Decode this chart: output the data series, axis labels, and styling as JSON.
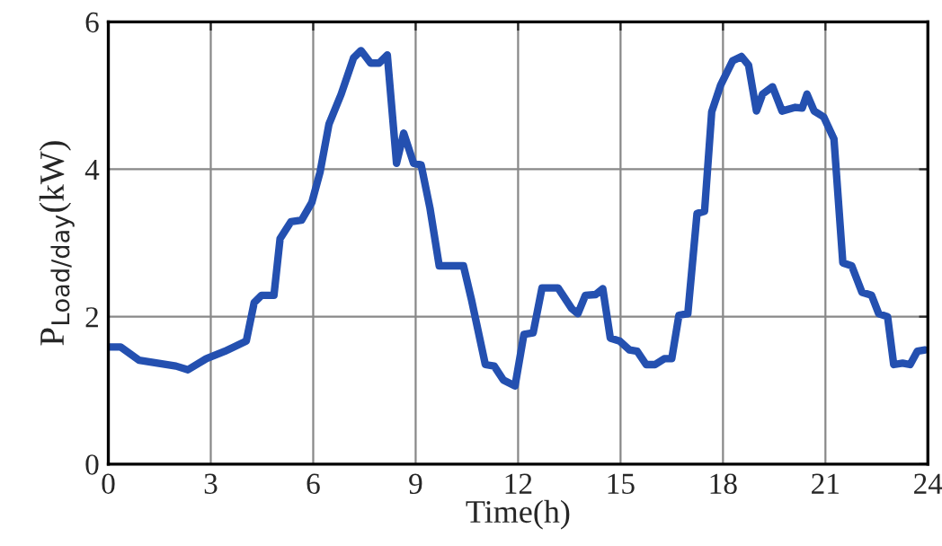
{
  "chart_data": {
    "type": "line",
    "xlabel": "Time(h)",
    "ylabel": "P$_{Load/day}$(kW)",
    "xlim": [
      0,
      24
    ],
    "ylim": [
      0,
      6
    ],
    "xticks": [
      0,
      3,
      6,
      9,
      12,
      15,
      18,
      21,
      24
    ],
    "yticks": [
      0,
      2,
      4,
      6
    ],
    "grid": true,
    "marker": "none",
    "line_style": "solid",
    "series": [
      {
        "color": "#2450b0",
        "x": [
          0,
          0.36,
          0.9,
          1.44,
          1.98,
          2.33,
          2.87,
          3.41,
          4.04,
          4.27,
          4.49,
          4.85,
          5.03,
          5.35,
          5.66,
          5.96,
          6.2,
          6.46,
          6.82,
          7.18,
          7.4,
          7.68,
          7.93,
          8.17,
          8.44,
          8.65,
          8.94,
          9.16,
          9.42,
          9.69,
          10.4,
          10.63,
          11.04,
          11.3,
          11.57,
          11.91,
          12.17,
          12.44,
          12.7,
          13.17,
          13.57,
          13.75,
          13.97,
          14.27,
          14.48,
          14.7,
          14.97,
          15.26,
          15.49,
          15.75,
          16.01,
          16.28,
          16.5,
          16.71,
          16.97,
          17.24,
          17.46,
          17.67,
          17.93,
          18.28,
          18.54,
          18.75,
          18.98,
          19.16,
          19.45,
          19.73,
          20.12,
          20.32,
          20.46,
          20.67,
          20.95,
          21.25,
          21.51,
          21.77,
          22.07,
          22.35,
          22.56,
          22.82,
          23.0,
          23.26,
          23.48,
          23.69,
          23.92
        ],
        "values": [
          1.59,
          1.59,
          1.41,
          1.37,
          1.33,
          1.28,
          1.43,
          1.53,
          1.67,
          2.19,
          2.29,
          2.29,
          3.06,
          3.29,
          3.31,
          3.55,
          3.96,
          4.61,
          5.02,
          5.51,
          5.61,
          5.44,
          5.44,
          5.55,
          4.08,
          4.49,
          4.08,
          4.06,
          3.47,
          2.69,
          2.69,
          2.24,
          1.35,
          1.33,
          1.14,
          1.06,
          1.76,
          1.78,
          2.39,
          2.39,
          2.11,
          2.04,
          2.29,
          2.3,
          2.38,
          1.71,
          1.67,
          1.55,
          1.53,
          1.35,
          1.35,
          1.43,
          1.43,
          2.02,
          2.04,
          3.4,
          3.43,
          4.78,
          5.14,
          5.47,
          5.53,
          5.41,
          4.79,
          5.02,
          5.12,
          4.79,
          4.84,
          4.83,
          5.02,
          4.79,
          4.71,
          4.41,
          2.73,
          2.69,
          2.33,
          2.29,
          2.04,
          2.0,
          1.35,
          1.37,
          1.35,
          1.53,
          1.55
        ]
      }
    ]
  }
}
